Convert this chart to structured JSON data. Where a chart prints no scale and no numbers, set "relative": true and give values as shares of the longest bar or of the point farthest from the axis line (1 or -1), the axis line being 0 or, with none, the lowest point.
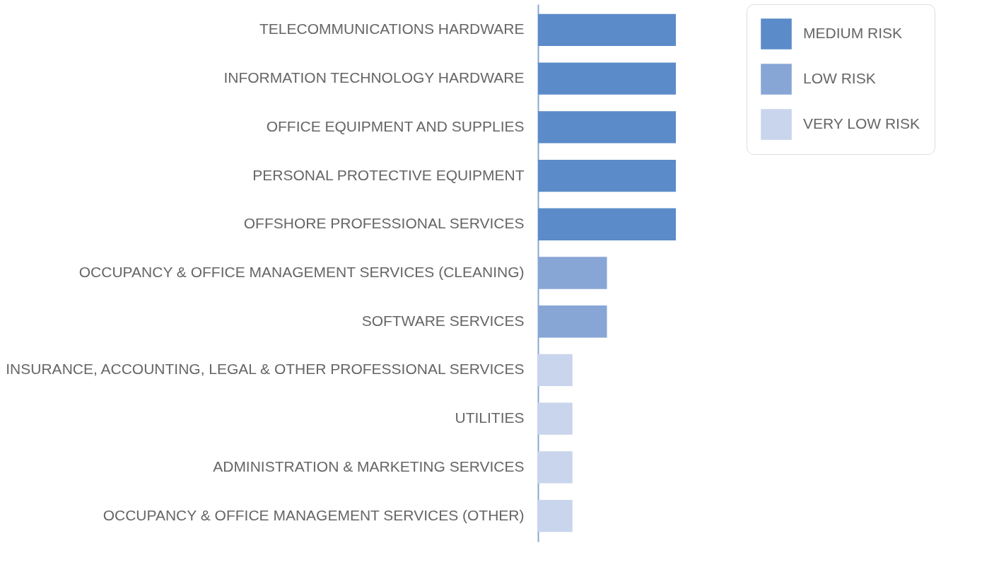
{
  "chart_data": {
    "type": "bar",
    "orientation": "horizontal",
    "relative": true,
    "legend": "top right",
    "grid": false,
    "categories": [
      "TELECOMMUNICATIONS HARDWARE",
      "INFORMATION TECHNOLOGY HARDWARE",
      "OFFICE EQUIPMENT AND SUPPLIES",
      "PERSONAL PROTECTIVE EQUIPMENT",
      "OFFSHORE PROFESSIONAL SERVICES",
      "OCCUPANCY & OFFICE MANAGEMENT SERVICES (CLEANING)",
      "SOFTWARE SERVICES",
      "INSURANCE, ACCOUNTING, LEGAL & OTHER PROFESSIONAL SERVICES",
      "UTILITIES",
      "ADMINISTRATION & MARKETING SERVICES",
      "OCCUPANCY & OFFICE MANAGEMENT SERVICES (OTHER)"
    ],
    "series": [
      {
        "name": "MEDIUM RISK",
        "color": "#5b8bc9",
        "values": [
          1,
          1,
          1,
          1,
          1,
          null,
          null,
          null,
          null,
          null,
          null
        ]
      },
      {
        "name": "LOW RISK",
        "color": "#87a6d6",
        "values": [
          null,
          null,
          null,
          null,
          null,
          0.5,
          0.5,
          null,
          null,
          null,
          null
        ]
      },
      {
        "name": "VERY LOW RISK",
        "color": "#c8d5ec",
        "values": [
          null,
          null,
          null,
          null,
          null,
          null,
          null,
          0.25,
          0.25,
          0.25,
          0.25
        ]
      }
    ]
  }
}
